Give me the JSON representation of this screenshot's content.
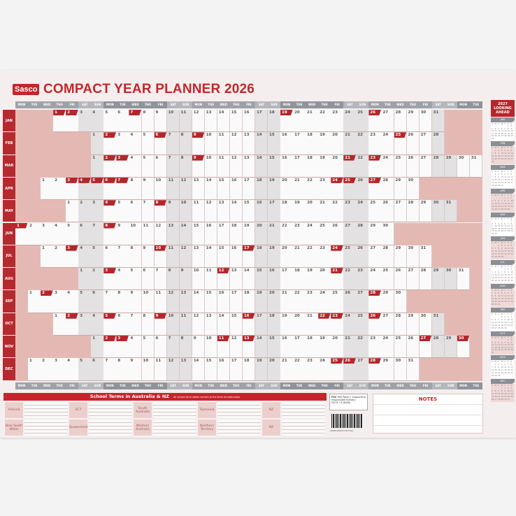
{
  "brand": "Sasco",
  "title": "COMPACT YEAR PLANNER 2026",
  "weekdays": [
    "MON",
    "TUE",
    "WED",
    "THU",
    "FRI",
    "SAT",
    "SUN"
  ],
  "months": [
    {
      "name": "JAN",
      "start": 3,
      "days": 31,
      "holidays": [
        1,
        2,
        7,
        19,
        26
      ]
    },
    {
      "name": "FEB",
      "start": 6,
      "days": 28,
      "holidays": [
        2,
        6,
        9,
        25
      ]
    },
    {
      "name": "MAR",
      "start": 6,
      "days": 31,
      "holidays": [
        2,
        3,
        9,
        21,
        23
      ]
    },
    {
      "name": "APR",
      "start": 2,
      "days": 30,
      "holidays": [
        3,
        4,
        5,
        6,
        7,
        24,
        25,
        27
      ]
    },
    {
      "name": "MAY",
      "start": 4,
      "days": 31,
      "holidays": [
        4,
        8
      ]
    },
    {
      "name": "JUN",
      "start": 0,
      "days": 30,
      "holidays": [
        1,
        8
      ]
    },
    {
      "name": "JUL",
      "start": 2,
      "days": 31,
      "holidays": [
        3,
        10,
        17,
        24
      ]
    },
    {
      "name": "AUG",
      "start": 5,
      "days": 31,
      "holidays": [
        3,
        12,
        21
      ]
    },
    {
      "name": "SEP",
      "start": 1,
      "days": 30,
      "holidays": [
        2,
        28
      ]
    },
    {
      "name": "OCT",
      "start": 3,
      "days": 31,
      "holidays": [
        2,
        5,
        9,
        16,
        22,
        23,
        26
      ]
    },
    {
      "name": "NOV",
      "start": 6,
      "days": 30,
      "holidays": [
        2,
        3,
        11,
        13,
        27,
        30
      ]
    },
    {
      "name": "DEC",
      "start": 1,
      "days": 31,
      "holidays": [
        25,
        26,
        28
      ]
    }
  ],
  "colors": {
    "brand_red": "#c4262b",
    "header_grey": "#8f939a",
    "outside_pink": "#e4b9b4",
    "weekend": "#e3e1e1"
  },
  "terms": {
    "heading": "School Terms in Australia & NZ",
    "note": "All school term dates correct at the time of production",
    "states": [
      "Victoria",
      "ACT",
      "South Australia",
      "Tasmania",
      "NZ",
      "New South Wales",
      "Queensland",
      "Western Australia",
      "Northern Territory",
      "NZ"
    ]
  },
  "fsc": {
    "label": "FSC",
    "text": "MIX Paper | Supporting responsible forestry",
    "code": "FSC® C118480"
  },
  "website": "www.sasco.com.au",
  "notes_label": "NOTES",
  "sidebar": {
    "heading": "2027 LOOKING AHEAD",
    "months": [
      "JAN",
      "FEB",
      "MAR",
      "APR",
      "MAY",
      "JUN",
      "JUL",
      "AUG",
      "SEP",
      "OCT",
      "NOV",
      "DEC"
    ],
    "year": 2027,
    "weekday_initials": [
      "S",
      "M",
      "T",
      "W",
      "T",
      "F",
      "S"
    ]
  }
}
